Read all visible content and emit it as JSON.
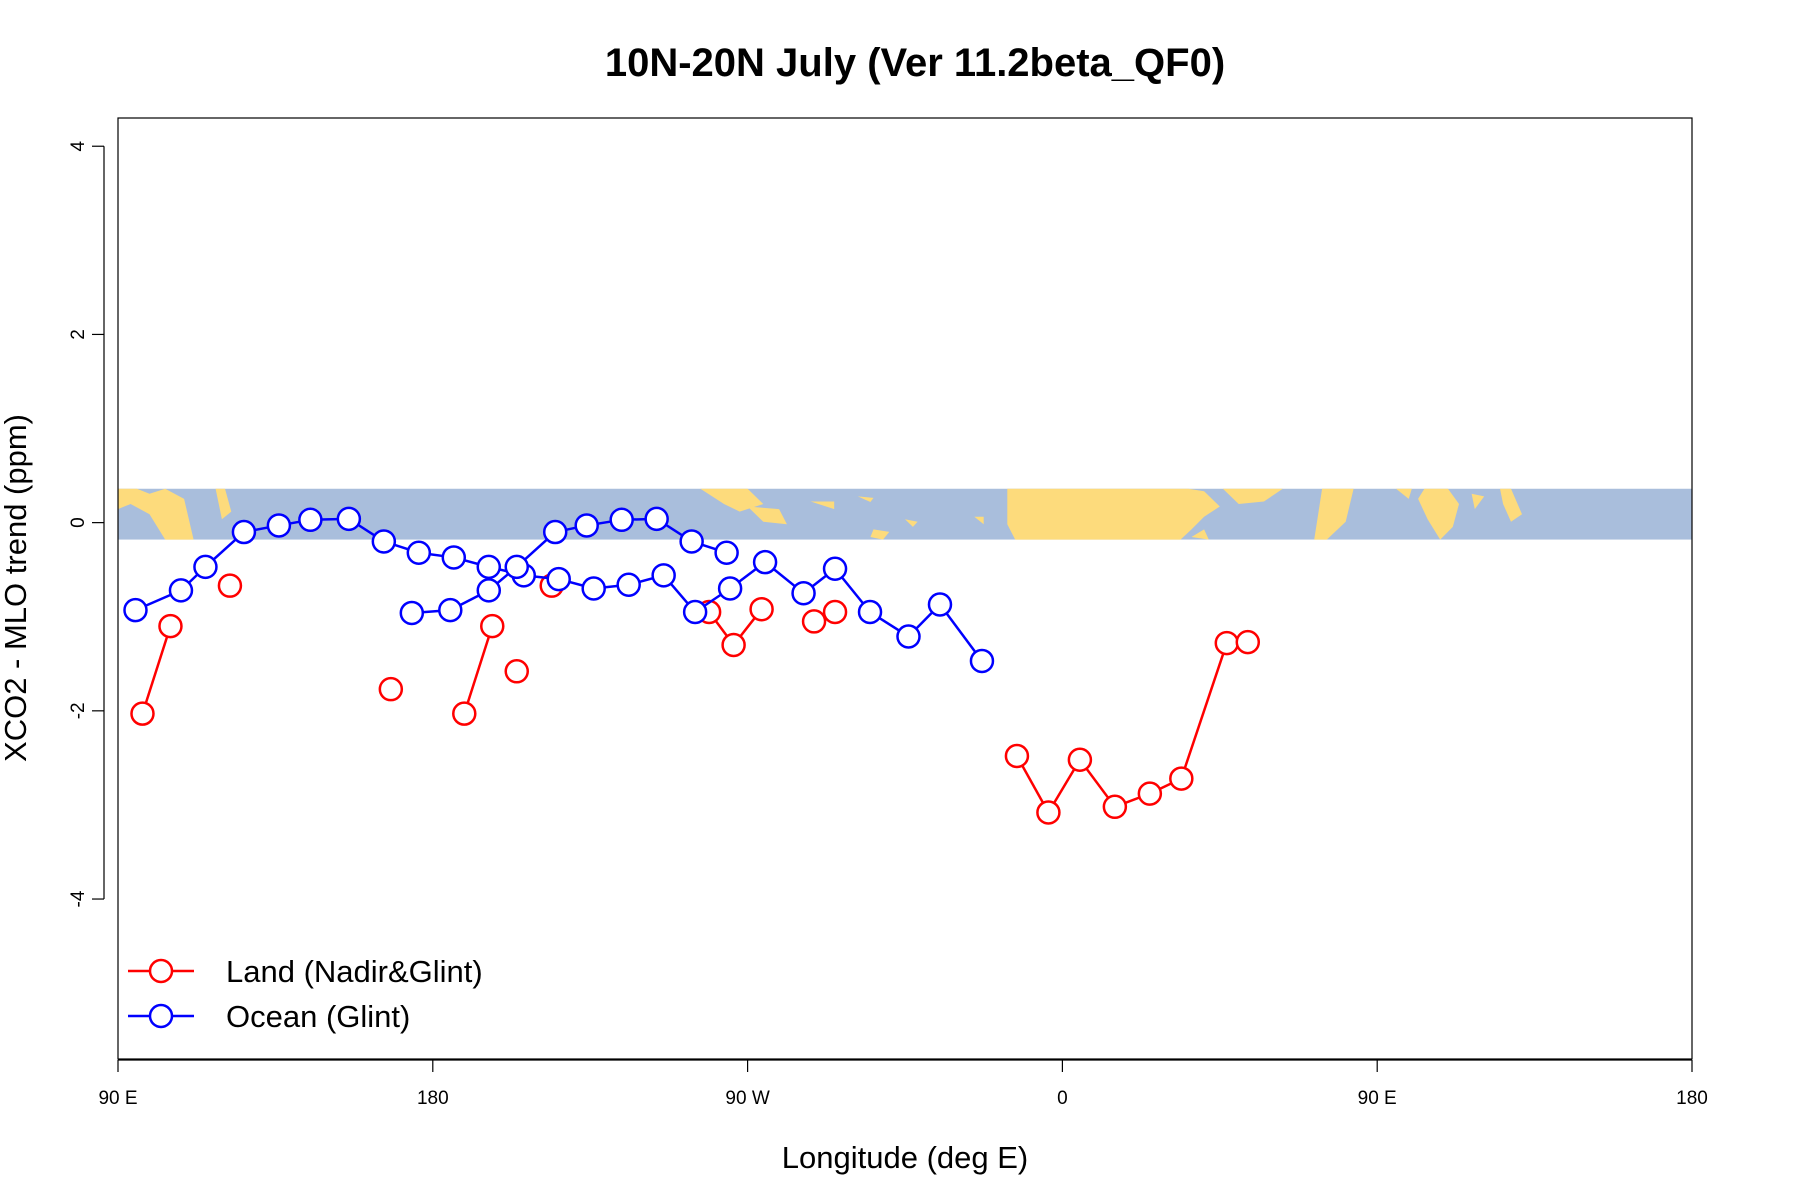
{
  "chart_data": {
    "type": "line",
    "title": "10N-20N July (Ver 11.2beta_QF0)",
    "xlabel": "Longitude (deg E)",
    "ylabel": "XCO2 - MLO trend (ppm)",
    "xlim": [
      90,
      540
    ],
    "ylim": [
      -5.7,
      4.3
    ],
    "x_ticks": [
      {
        "value": 90,
        "label": "90 E"
      },
      {
        "value": 180,
        "label": "180"
      },
      {
        "value": 270,
        "label": "90 W"
      },
      {
        "value": 360,
        "label": "0"
      },
      {
        "value": 450,
        "label": "90 E"
      },
      {
        "value": 540,
        "label": "180"
      }
    ],
    "y_ticks": [
      {
        "value": 4,
        "label": "4"
      },
      {
        "value": 2,
        "label": "2"
      },
      {
        "value": 0,
        "label": "0"
      },
      {
        "value": -2,
        "label": "-2"
      },
      {
        "value": -4,
        "label": "-4"
      }
    ],
    "legend_position": "bottom-left",
    "background_map_band": {
      "ymin": -0.18,
      "ymax": 0.36,
      "ocean_color": "#a9bedc",
      "land_color": "#fddb7c"
    },
    "series": [
      {
        "name": "Land (Nadir&Glint)",
        "color": "#ff0000",
        "points": [
          [
            97,
            -2.03
          ],
          [
            105,
            -1.1
          ],
          [
            122,
            -0.67
          ],
          [
            204,
            -1.58
          ],
          [
            259,
            -0.95
          ],
          [
            266,
            -1.3
          ],
          [
            274,
            -0.92
          ],
          [
            289,
            -1.05
          ],
          [
            295,
            -0.95
          ],
          [
            347,
            -2.48
          ],
          [
            356,
            -3.08
          ],
          [
            365,
            -2.52
          ],
          [
            375,
            -3.02
          ],
          [
            385,
            -2.88
          ],
          [
            394,
            -2.72
          ],
          [
            407,
            -1.28
          ],
          [
            413,
            -1.27
          ],
          [
            168,
            -1.77
          ],
          [
            189,
            -2.03
          ],
          [
            197,
            -1.1
          ],
          [
            214,
            -0.67
          ]
        ],
        "segments": [
          [
            0,
            1
          ],
          [
            4,
            5
          ],
          [
            5,
            6
          ],
          [
            7,
            8
          ],
          [
            9,
            10
          ],
          [
            10,
            11
          ],
          [
            11,
            12
          ],
          [
            12,
            13
          ],
          [
            13,
            14
          ],
          [
            14,
            15
          ],
          [
            15,
            16
          ],
          [
            18,
            19
          ]
        ]
      },
      {
        "name": "Ocean (Glint)",
        "color": "#0000ff",
        "points": [
          [
            95,
            -0.93
          ],
          [
            108,
            -0.72
          ],
          [
            115,
            -0.47
          ],
          [
            126,
            -0.1
          ],
          [
            136,
            -0.03
          ],
          [
            145,
            0.03
          ],
          [
            156,
            0.04
          ],
          [
            166,
            -0.2
          ],
          [
            176,
            -0.32
          ],
          [
            186,
            -0.37
          ],
          [
            196,
            -0.47
          ],
          [
            206,
            -0.56
          ],
          [
            216,
            -0.6
          ],
          [
            226,
            -0.7
          ],
          [
            236,
            -0.66
          ],
          [
            246,
            -0.56
          ],
          [
            255,
            -0.95
          ],
          [
            265,
            -0.7
          ],
          [
            275,
            -0.42
          ],
          [
            286,
            -0.75
          ],
          [
            295,
            -0.49
          ],
          [
            305,
            -0.95
          ],
          [
            316,
            -1.21
          ],
          [
            325,
            -0.87
          ],
          [
            337,
            -1.47
          ],
          [
            174,
            -0.96
          ],
          [
            185,
            -0.93
          ],
          [
            196,
            -0.72
          ],
          [
            204,
            -0.47
          ],
          [
            215,
            -0.1
          ],
          [
            224,
            -0.03
          ],
          [
            234,
            0.03
          ],
          [
            244,
            0.04
          ],
          [
            254,
            -0.2
          ],
          [
            264,
            -0.32
          ]
        ],
        "segments": [
          [
            0,
            1
          ],
          [
            1,
            2
          ],
          [
            2,
            3
          ],
          [
            3,
            4
          ],
          [
            4,
            5
          ],
          [
            5,
            6
          ],
          [
            6,
            7
          ],
          [
            7,
            8
          ],
          [
            8,
            9
          ],
          [
            9,
            10
          ],
          [
            10,
            11
          ],
          [
            11,
            12
          ],
          [
            12,
            13
          ],
          [
            13,
            14
          ],
          [
            14,
            15
          ],
          [
            15,
            16
          ],
          [
            16,
            17
          ],
          [
            17,
            18
          ],
          [
            18,
            19
          ],
          [
            19,
            20
          ],
          [
            20,
            21
          ],
          [
            21,
            22
          ],
          [
            22,
            23
          ],
          [
            23,
            24
          ],
          [
            25,
            26
          ],
          [
            26,
            27
          ],
          [
            27,
            28
          ],
          [
            28,
            29
          ],
          [
            29,
            30
          ],
          [
            30,
            31
          ],
          [
            31,
            32
          ],
          [
            32,
            33
          ],
          [
            33,
            34
          ]
        ]
      }
    ]
  }
}
